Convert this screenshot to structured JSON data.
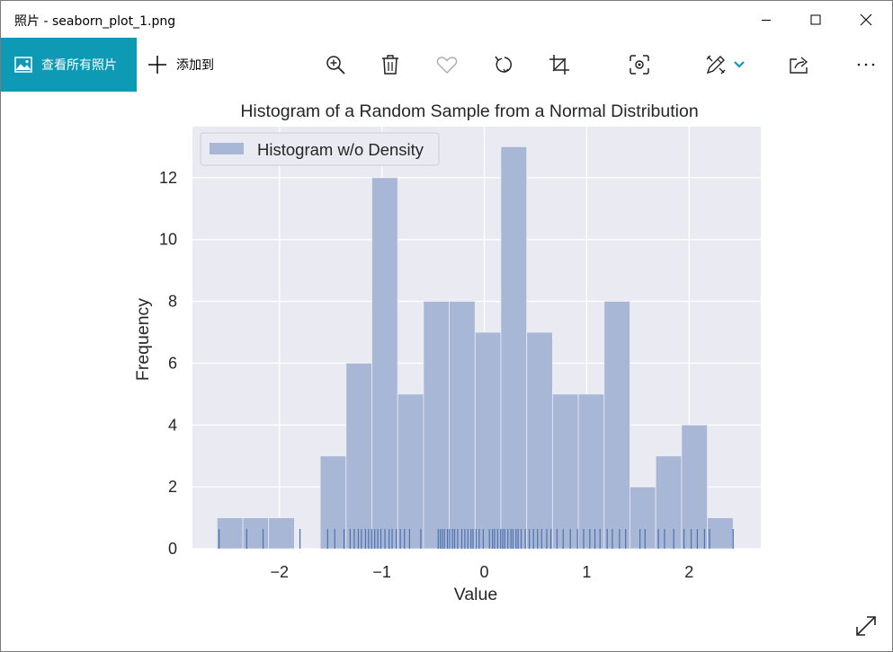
{
  "window": {
    "title": "照片 - seaborn_plot_1.png"
  },
  "toolbar": {
    "view_all_label": "查看所有照片",
    "add_to_label": "添加到",
    "accent_color": "#0e9ab5",
    "icons": [
      "zoom-in-icon",
      "delete-icon",
      "favorite-icon",
      "rotate-icon",
      "crop-icon",
      "visual-search-icon",
      "edit-icon",
      "share-icon",
      "more-icon"
    ]
  },
  "chart_data": {
    "type": "bar",
    "title": "Histogram of a Random Sample from a Normal Distribution",
    "xlabel": "Value",
    "ylabel": "Frequency",
    "legend": "Histogram w/o Density",
    "legend_position": "top-left",
    "xlim": [
      -2.85,
      2.7
    ],
    "ylim": [
      0,
      13.65
    ],
    "xticks": [
      -2,
      -1,
      0,
      1,
      2
    ],
    "xtick_labels": [
      "−2",
      "−1",
      "0",
      "1",
      "2"
    ],
    "yticks": [
      0,
      2,
      4,
      6,
      8,
      10,
      12
    ],
    "yticks_labels": [
      "0",
      "2",
      "4",
      "6",
      "8",
      "10",
      "12"
    ],
    "bin_start": -2.61,
    "bin_width": 0.252,
    "counts": [
      1,
      1,
      1,
      0,
      3,
      6,
      12,
      5,
      8,
      8,
      7,
      13,
      7,
      5,
      5,
      8,
      2,
      3,
      4,
      1
    ],
    "rug": [
      -2.59,
      -2.32,
      -2.16,
      -1.8,
      -1.53,
      -1.46,
      -1.37,
      -1.31,
      -1.27,
      -1.23,
      -1.2,
      -1.16,
      -1.13,
      -1.1,
      -1.07,
      -1.04,
      -1.01,
      -0.97,
      -0.93,
      -0.9,
      -0.86,
      -0.82,
      -0.78,
      -0.73,
      -0.62,
      -0.45,
      -0.43,
      -0.41,
      -0.39,
      -0.36,
      -0.34,
      -0.31,
      -0.29,
      -0.26,
      -0.22,
      -0.19,
      -0.16,
      -0.13,
      -0.11,
      -0.08,
      -0.05,
      -0.01,
      0.05,
      0.08,
      0.1,
      0.13,
      0.16,
      0.18,
      0.2,
      0.23,
      0.26,
      0.28,
      0.31,
      0.33,
      0.36,
      0.4,
      0.44,
      0.48,
      0.52,
      0.56,
      0.61,
      0.65,
      0.71,
      0.77,
      0.84,
      0.91,
      0.97,
      1.03,
      1.08,
      1.13,
      1.2,
      1.25,
      1.32,
      1.38,
      1.52,
      1.57,
      1.7,
      1.76,
      1.85,
      1.95,
      2.02,
      2.08,
      2.15,
      2.2,
      2.43
    ]
  }
}
